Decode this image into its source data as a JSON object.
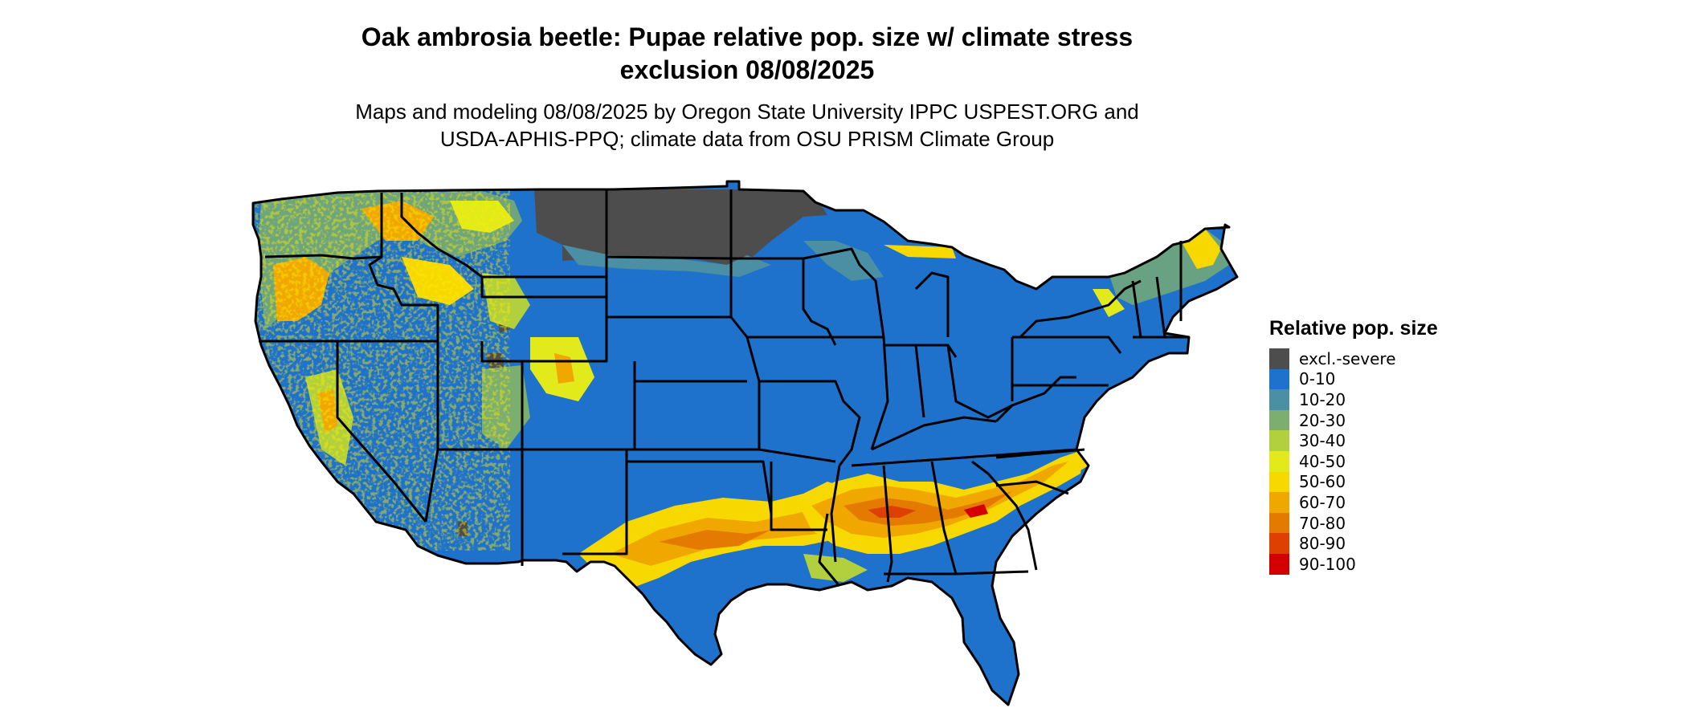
{
  "title_line1": "Oak ambrosia beetle: Pupae relative pop. size w/ climate stress",
  "title_line2": "exclusion 08/08/2025",
  "subtitle_line1": "Maps and modeling 08/08/2025 by Oregon State University IPPC USPEST.ORG and",
  "subtitle_line2": "USDA-APHIS-PPQ; climate data from OSU PRISM Climate Group",
  "legend": {
    "title": "Relative pop. size",
    "items": [
      {
        "label": "excl.-severe",
        "color": "#4d4d4d"
      },
      {
        "label": "0-10",
        "color": "#1f72cc"
      },
      {
        "label": "10-20",
        "color": "#4a8fa3"
      },
      {
        "label": "20-30",
        "color": "#7cae6f"
      },
      {
        "label": "30-40",
        "color": "#b2cf3d"
      },
      {
        "label": "40-50",
        "color": "#e2ea1c"
      },
      {
        "label": "50-60",
        "color": "#f7d800"
      },
      {
        "label": "60-70",
        "color": "#f0a800"
      },
      {
        "label": "70-80",
        "color": "#e57a00"
      },
      {
        "label": "80-90",
        "color": "#dd4000"
      },
      {
        "label": "90-100",
        "color": "#d40000"
      }
    ]
  }
}
